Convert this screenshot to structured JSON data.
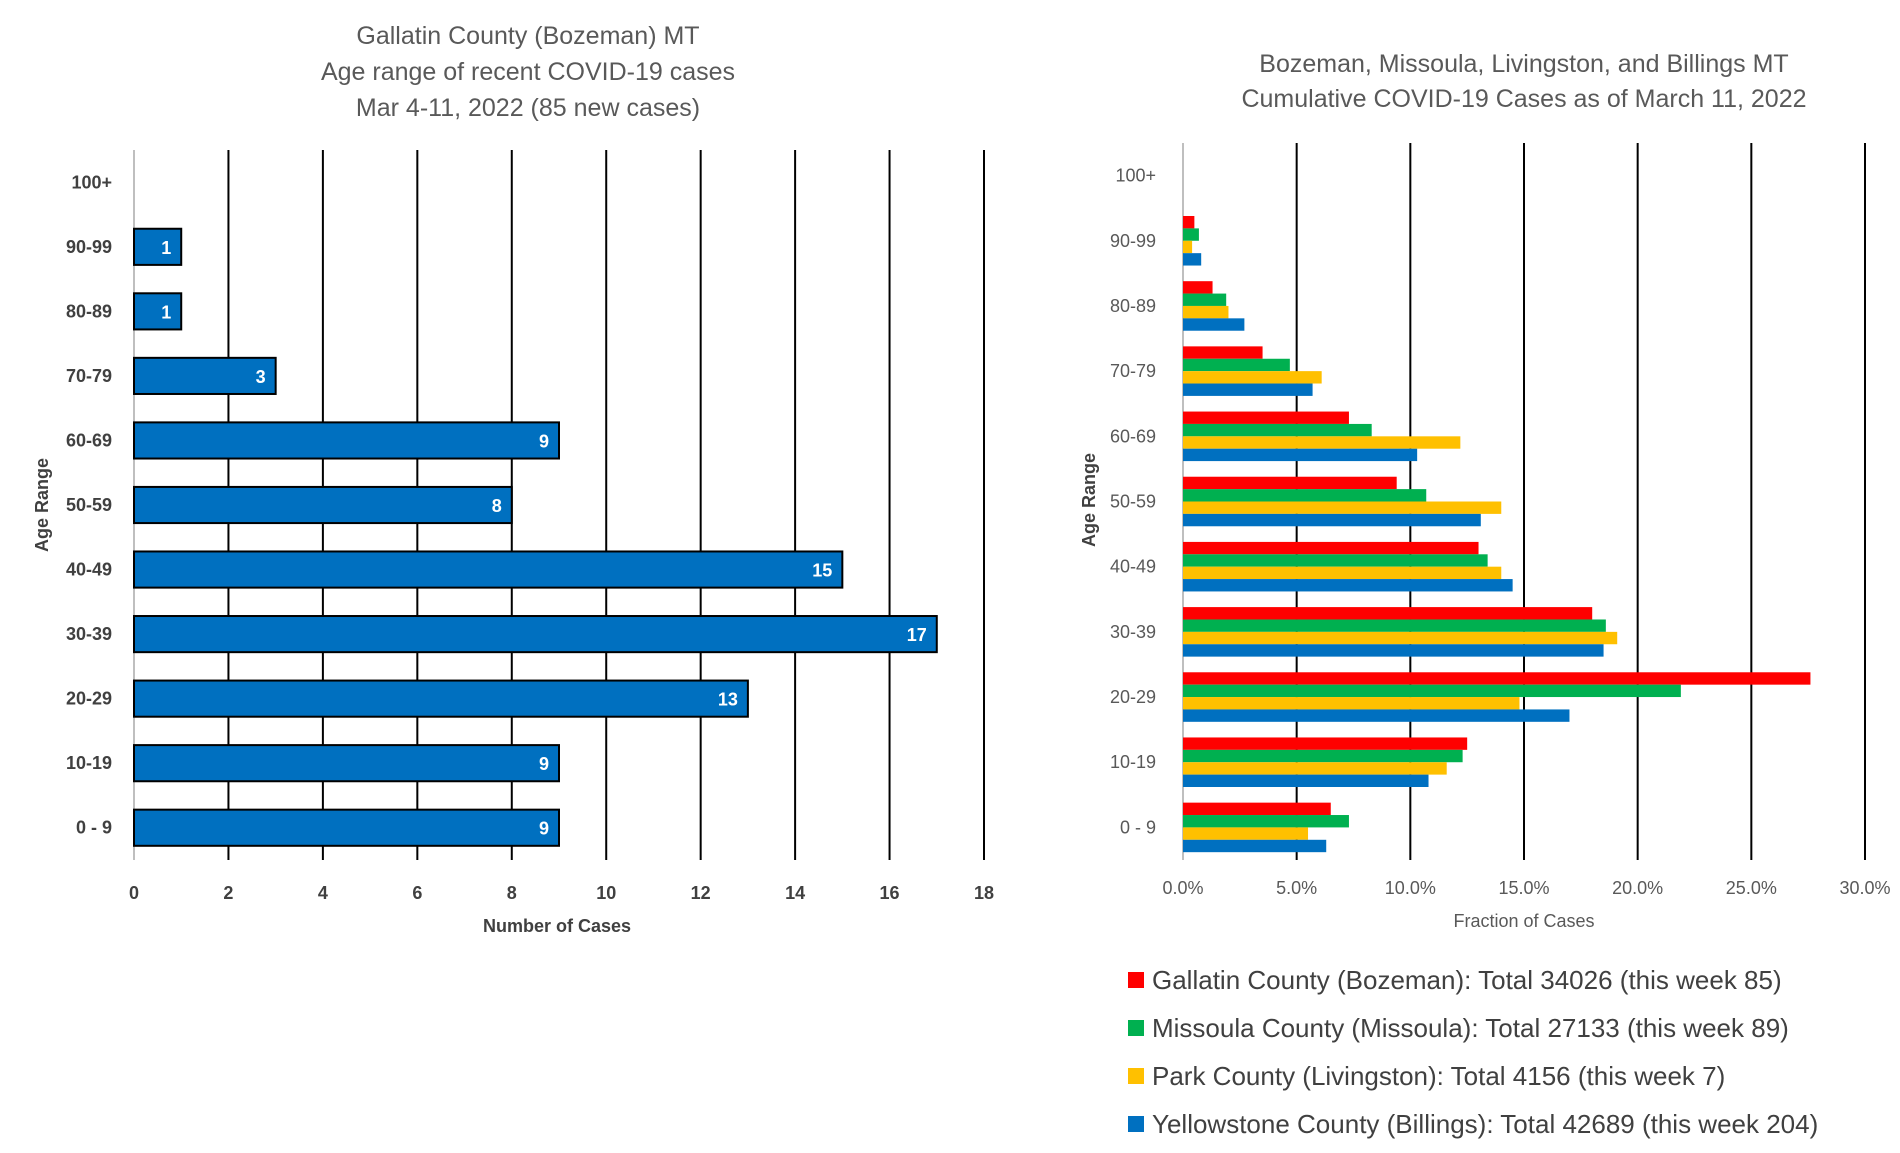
{
  "chart_data": [
    {
      "type": "bar",
      "orientation": "horizontal",
      "title": [
        "Gallatin County (Bozeman) MT",
        "Age range of recent COVID-19 cases",
        "Mar 4-11, 2022 (85 new cases)"
      ],
      "xlabel": "Number of Cases",
      "ylabel": "Age Range",
      "categories": [
        "0 - 9",
        "10-19",
        "20-29",
        "30-39",
        "40-49",
        "50-59",
        "60-69",
        "70-79",
        "80-89",
        "90-99",
        "100+"
      ],
      "values": [
        9,
        9,
        13,
        17,
        15,
        8,
        9,
        3,
        1,
        1,
        null
      ],
      "xlim": [
        0,
        18
      ],
      "xticks": [
        "0",
        "2",
        "4",
        "6",
        "8",
        "10",
        "12",
        "14",
        "16",
        "18"
      ],
      "grid": "vertical",
      "data_labels": true,
      "bar_color": "#0070C0"
    },
    {
      "type": "bar",
      "orientation": "horizontal",
      "title": [
        "Bozeman, Missoula, Livingston, and Billings MT",
        "Cumulative COVID-19 Cases as of March 11, 2022"
      ],
      "xlabel": "Fraction of Cases",
      "ylabel": "Age Range",
      "categories": [
        "0 - 9",
        "10-19",
        "20-29",
        "30-39",
        "40-49",
        "50-59",
        "60-69",
        "70-79",
        "80-89",
        "90-99",
        "100+"
      ],
      "xlim": [
        0,
        0.3
      ],
      "xticks": [
        "0.0%",
        "5.0%",
        "10.0%",
        "15.0%",
        "20.0%",
        "25.0%",
        "30.0%"
      ],
      "grid": "vertical",
      "legend_position": "bottom",
      "series": [
        {
          "name": "Gallatin County (Bozeman): Total 34026 (this week 85)",
          "color": "#FF0000",
          "values": [
            0.065,
            0.125,
            0.276,
            0.18,
            0.13,
            0.094,
            0.073,
            0.035,
            0.013,
            0.005,
            0.0
          ]
        },
        {
          "name": "Missoula County (Missoula): Total 27133 (this week 89)",
          "color": "#00B050",
          "values": [
            0.073,
            0.123,
            0.219,
            0.186,
            0.134,
            0.107,
            0.083,
            0.047,
            0.019,
            0.007,
            0.0
          ]
        },
        {
          "name": "Park County (Livingston): Total 4156 (this week 7)",
          "color": "#FFC000",
          "values": [
            0.055,
            0.116,
            0.148,
            0.191,
            0.14,
            0.14,
            0.122,
            0.061,
            0.02,
            0.004,
            0.0
          ]
        },
        {
          "name": "Yellowstone County (Billings): Total 42689 (this week 204)",
          "color": "#0070C0",
          "values": [
            0.063,
            0.108,
            0.17,
            0.185,
            0.145,
            0.131,
            0.103,
            0.057,
            0.027,
            0.008,
            0.0
          ]
        }
      ]
    }
  ]
}
